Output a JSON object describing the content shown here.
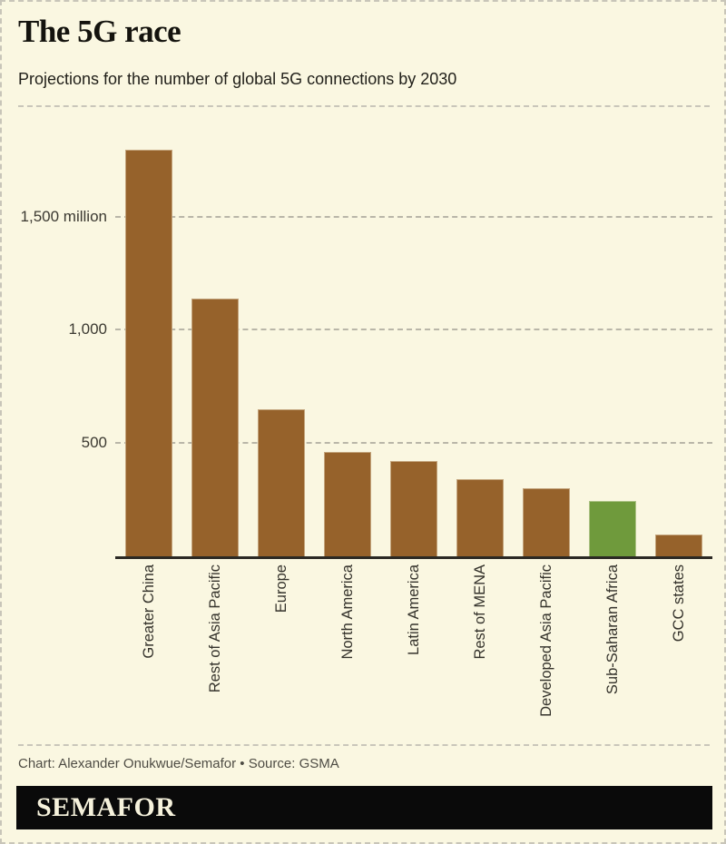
{
  "header": {
    "title": "The 5G race",
    "subtitle": "Projections for the number of global 5G connections by 2030"
  },
  "chart_data": {
    "type": "bar",
    "title": "The 5G race",
    "subtitle": "Projections for the number of global 5G connections by 2030",
    "unit": "million connections",
    "categories": [
      "Greater China",
      "Rest of Asia Pacific",
      "Europe",
      "North America",
      "Latin America",
      "Rest of MENA",
      "Developed Asia Pacific",
      "Sub-Saharan Africa",
      "GCC states"
    ],
    "values": [
      1800,
      1140,
      650,
      460,
      420,
      340,
      300,
      245,
      95
    ],
    "yticks": [
      {
        "value": 1500,
        "label": "1,500 million"
      },
      {
        "value": 1000,
        "label": "1,000"
      },
      {
        "value": 500,
        "label": "500"
      }
    ],
    "ylim": [
      0,
      1900
    ],
    "grid": "horizontal-dashed",
    "legend": "none",
    "bar_color": "#96622B",
    "highlight": {
      "index": 7,
      "category": "Sub-Saharan Africa",
      "color": "#6F9A3C"
    },
    "xlabel_rotation": -90,
    "source": "GSMA"
  },
  "footer": {
    "credit": "Chart: Alexander Onukwue/Semafor • Source: GSMA",
    "brand": "SEMAFOR"
  },
  "colors": {
    "background": "#FAF7E1",
    "bar_brown": "#96622B",
    "bar_green": "#6F9A3C",
    "axis_line": "#2B2924",
    "gridline": "#B9B6A8",
    "border_dash": "#C8C5B9",
    "title_text": "#14130E",
    "label_text": "#3B3931",
    "credit_text": "#4E4C44",
    "brand_bg": "#0A0A0A",
    "brand_text": "#F6F2DC"
  }
}
